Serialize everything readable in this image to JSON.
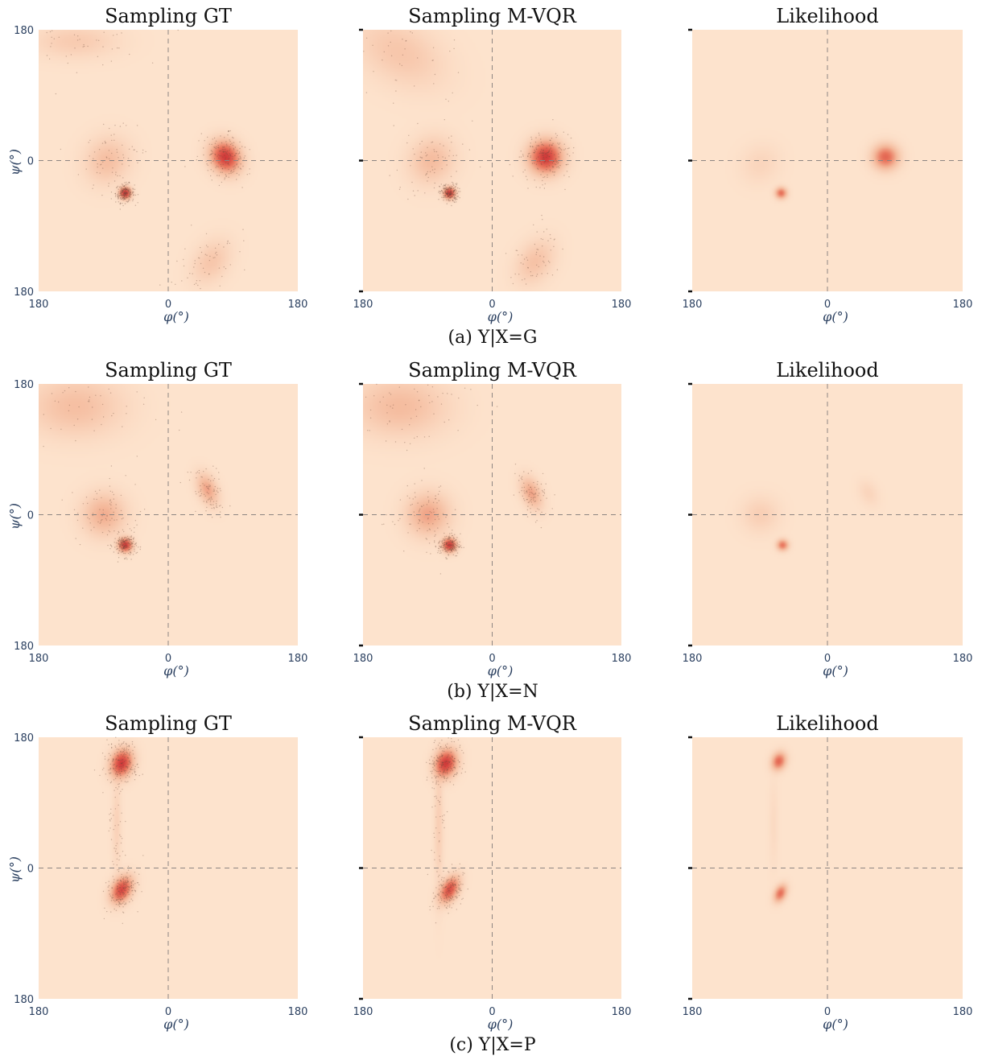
{
  "figure": {
    "background_color": "#fde3cd",
    "colormap": [
      "#fde3cd",
      "#f4b89a",
      "#e8735b",
      "#d13a3a"
    ],
    "rows": [
      {
        "caption": "(a)  Y|X=G",
        "panels": [
          {
            "title": "Sampling GT",
            "kind": "samples"
          },
          {
            "title": "Sampling M-VQR",
            "kind": "samples"
          },
          {
            "title": "Likelihood",
            "kind": "likelihood"
          }
        ]
      },
      {
        "caption": "(b)  Y|X=N",
        "panels": [
          {
            "title": "Sampling GT",
            "kind": "samples"
          },
          {
            "title": "Sampling M-VQR",
            "kind": "samples"
          },
          {
            "title": "Likelihood",
            "kind": "likelihood"
          }
        ]
      },
      {
        "caption": "(c)  Y|X=P",
        "panels": [
          {
            "title": "Sampling GT",
            "kind": "samples"
          },
          {
            "title": "Sampling M-VQR",
            "kind": "samples"
          },
          {
            "title": "Likelihood",
            "kind": "likelihood"
          }
        ]
      }
    ],
    "axes": {
      "xlabel": "φ(°)",
      "ylabel": "ψ(°)",
      "xticks": [
        "180",
        "0",
        "180"
      ],
      "yticks": [
        "180",
        "0",
        "180"
      ],
      "reference_lines": "dashed at φ=0 and ψ=0"
    }
  },
  "chart_data": [
    {
      "type": "heatmap",
      "title": "Sampling GT",
      "caption": "(a)  Y|X=G",
      "xlabel": "φ(°)",
      "ylabel": "ψ(°)",
      "xlim": [
        -180,
        180
      ],
      "ylim": [
        -180,
        180
      ],
      "modes": [
        {
          "phi": 80,
          "psi": 5,
          "sphi": 12,
          "spsi": 14,
          "rot": -0.6,
          "w": 1.0
        },
        {
          "phi": -60,
          "psi": -45,
          "sphi": 5,
          "spsi": 5,
          "rot": 0,
          "w": 1.1
        },
        {
          "phi": -85,
          "psi": 0,
          "sphi": 18,
          "spsi": 20,
          "rot": 0.6,
          "w": 0.2
        },
        {
          "phi": 60,
          "psi": -140,
          "sphi": 14,
          "spsi": 20,
          "rot": 0.6,
          "w": 0.15
        },
        {
          "phi": -130,
          "psi": 165,
          "sphi": 35,
          "spsi": 14,
          "rot": 0,
          "w": 0.12
        }
      ]
    },
    {
      "type": "heatmap",
      "title": "Sampling M-VQR",
      "caption": "(a)  Y|X=G",
      "xlabel": "φ(°)",
      "ylabel": "",
      "xlim": [
        -180,
        180
      ],
      "ylim": [
        -180,
        180
      ],
      "modes": [
        {
          "phi": 75,
          "psi": 5,
          "sphi": 14,
          "spsi": 14,
          "rot": -0.6,
          "w": 1.0
        },
        {
          "phi": -60,
          "psi": -45,
          "sphi": 5,
          "spsi": 5,
          "rot": 0,
          "w": 1.05
        },
        {
          "phi": -85,
          "psi": 0,
          "sphi": 18,
          "spsi": 20,
          "rot": 0.6,
          "w": 0.22
        },
        {
          "phi": 60,
          "psi": -140,
          "sphi": 14,
          "spsi": 20,
          "rot": 0.6,
          "w": 0.18
        },
        {
          "phi": -130,
          "psi": 150,
          "sphi": 40,
          "spsi": 25,
          "rot": 0.5,
          "w": 0.15
        }
      ]
    },
    {
      "type": "heatmap",
      "title": "Likelihood",
      "caption": "(a)  Y|X=G",
      "xlabel": "φ(°)",
      "ylabel": "",
      "xlim": [
        -180,
        180
      ],
      "ylim": [
        -180,
        180
      ],
      "modes": [
        {
          "phi": 78,
          "psi": 5,
          "sphi": 11,
          "spsi": 11,
          "rot": -0.6,
          "w": 0.85
        },
        {
          "phi": -62,
          "psi": -45,
          "sphi": 5,
          "spsi": 5,
          "rot": 0,
          "w": 0.8
        },
        {
          "phi": -90,
          "psi": -5,
          "sphi": 16,
          "spsi": 18,
          "rot": 0.6,
          "w": 0.1
        }
      ]
    },
    {
      "type": "heatmap",
      "title": "Sampling GT",
      "caption": "(b) Y|X=N",
      "xlabel": "φ(°)",
      "ylabel": "ψ(°)",
      "xlim": [
        -180,
        180
      ],
      "ylim": [
        -180,
        180
      ],
      "modes": [
        {
          "phi": -60,
          "psi": -42,
          "sphi": 6,
          "spsi": 6,
          "rot": 0,
          "w": 1.0
        },
        {
          "phi": -90,
          "psi": 0,
          "sphi": 18,
          "spsi": 18,
          "rot": 0.7,
          "w": 0.3
        },
        {
          "phi": 55,
          "psi": 35,
          "sphi": 8,
          "spsi": 14,
          "rot": -0.4,
          "w": 0.35
        },
        {
          "phi": -130,
          "psi": 150,
          "sphi": 40,
          "spsi": 25,
          "rot": 0,
          "w": 0.2
        }
      ]
    },
    {
      "type": "heatmap",
      "title": "Sampling M-VQR",
      "caption": "(b) Y|X=N",
      "xlabel": "φ(°)",
      "ylabel": "",
      "xlim": [
        -180,
        180
      ],
      "ylim": [
        -180,
        180
      ],
      "modes": [
        {
          "phi": -60,
          "psi": -42,
          "sphi": 6,
          "spsi": 6,
          "rot": 0,
          "w": 1.0
        },
        {
          "phi": -90,
          "psi": 0,
          "sphi": 18,
          "spsi": 18,
          "rot": 0.7,
          "w": 0.35
        },
        {
          "phi": 55,
          "psi": 30,
          "sphi": 8,
          "spsi": 14,
          "rot": -0.4,
          "w": 0.35
        },
        {
          "phi": -130,
          "psi": 150,
          "sphi": 40,
          "spsi": 25,
          "rot": 0,
          "w": 0.22
        }
      ]
    },
    {
      "type": "heatmap",
      "title": "Likelihood",
      "caption": "(b) Y|X=N",
      "xlabel": "φ(°)",
      "ylabel": "",
      "xlim": [
        -180,
        180
      ],
      "ylim": [
        -180,
        180
      ],
      "modes": [
        {
          "phi": -60,
          "psi": -42,
          "sphi": 5,
          "spsi": 5,
          "rot": 0,
          "w": 0.75
        },
        {
          "phi": -90,
          "psi": 0,
          "sphi": 16,
          "spsi": 16,
          "rot": 0.7,
          "w": 0.15
        },
        {
          "phi": 55,
          "psi": 30,
          "sphi": 8,
          "spsi": 12,
          "rot": -0.4,
          "w": 0.1
        }
      ]
    },
    {
      "type": "heatmap",
      "title": "Sampling GT",
      "caption": "(c) Y|X=P",
      "xlabel": "φ(°)",
      "ylabel": "ψ(°)",
      "xlim": [
        -180,
        180
      ],
      "ylim": [
        -180,
        180
      ],
      "modes": [
        {
          "phi": -65,
          "psi": 145,
          "sphi": 9,
          "spsi": 12,
          "rot": 0.3,
          "w": 1.0
        },
        {
          "phi": -65,
          "psi": -30,
          "sphi": 8,
          "spsi": 12,
          "rot": 0.5,
          "w": 0.9
        },
        {
          "phi": -72,
          "psi": 60,
          "sphi": 4,
          "spsi": 40,
          "rot": 0,
          "w": 0.08
        }
      ]
    },
    {
      "type": "heatmap",
      "title": "Sampling M-VQR",
      "caption": "(c) Y|X=P",
      "xlabel": "φ(°)",
      "ylabel": "",
      "xlim": [
        -180,
        180
      ],
      "ylim": [
        -180,
        180
      ],
      "modes": [
        {
          "phi": -65,
          "psi": 145,
          "sphi": 9,
          "spsi": 12,
          "rot": 0.3,
          "w": 1.0
        },
        {
          "phi": -60,
          "psi": -30,
          "sphi": 7,
          "spsi": 12,
          "rot": 0.5,
          "w": 0.85
        },
        {
          "phi": -75,
          "psi": 60,
          "sphi": 4,
          "spsi": 60,
          "rot": 0,
          "w": 0.1
        }
      ]
    },
    {
      "type": "heatmap",
      "title": "Likelihood",
      "caption": "(c) Y|X=P",
      "xlabel": "φ(°)",
      "ylabel": "",
      "xlim": [
        -180,
        180
      ],
      "ylim": [
        -180,
        180
      ],
      "modes": [
        {
          "phi": -65,
          "psi": 148,
          "sphi": 6,
          "spsi": 8,
          "rot": 0.3,
          "w": 0.85
        },
        {
          "phi": -63,
          "psi": -35,
          "sphi": 5,
          "spsi": 8,
          "rot": 0.4,
          "w": 0.8
        },
        {
          "phi": -72,
          "psi": 60,
          "sphi": 4,
          "spsi": 40,
          "rot": 0,
          "w": 0.06
        }
      ]
    }
  ]
}
